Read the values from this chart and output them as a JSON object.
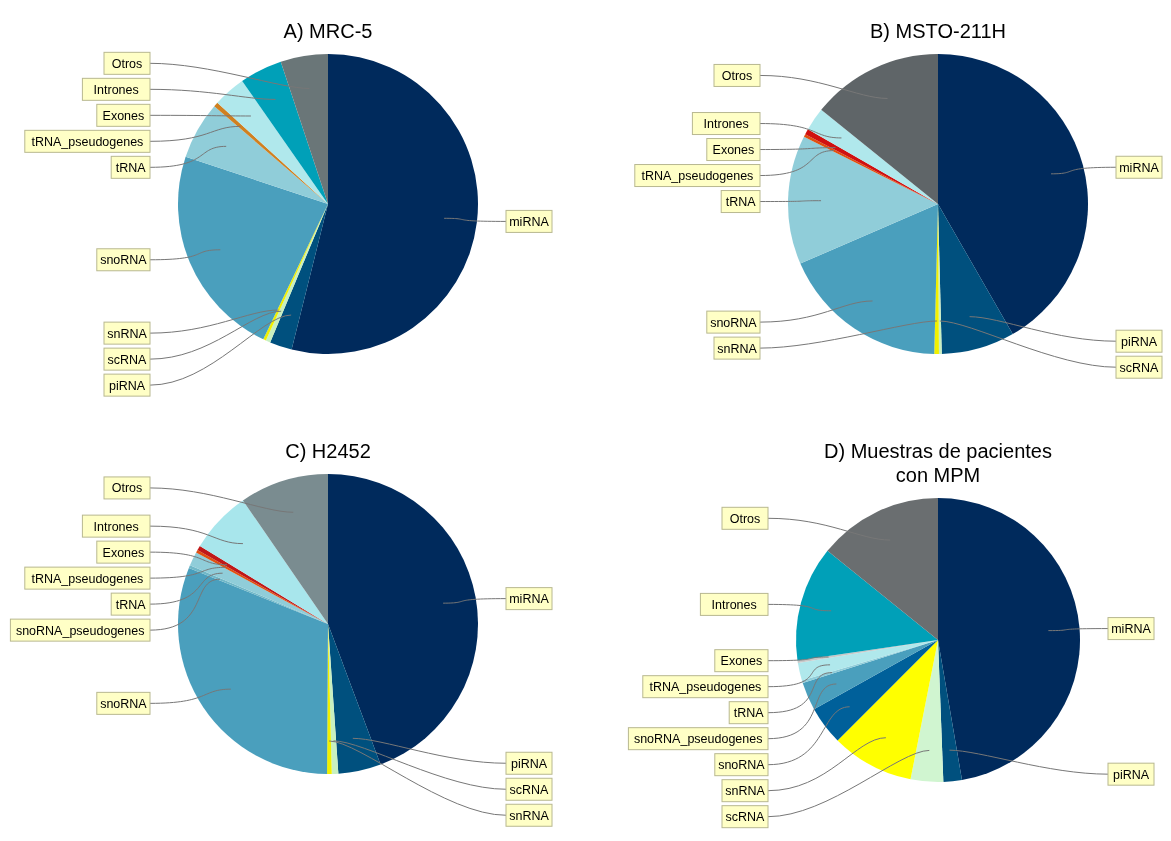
{
  "chart_data": [
    {
      "type": "pie",
      "title": "A) MRC-5",
      "categories": [
        "miRNA",
        "piRNA",
        "scRNA",
        "snRNA",
        "snoRNA",
        "tRNA",
        "tRNA_pseudogenes",
        "Exones",
        "Intrones",
        "Otros"
      ],
      "values": [
        53.9,
        2.4,
        0.5,
        0.3,
        23,
        6.2,
        0.5,
        3.5,
        4.6,
        5.1
      ],
      "colors": [
        "#002a5c",
        "#00507e",
        "#c8f0c0",
        "#f0f000",
        "#4a9fbd",
        "#90cdd9",
        "#d08020",
        "#b0e8ec",
        "#00a0b8",
        "#6a7678"
      ],
      "legend": false
    },
    {
      "type": "pie",
      "title": "B) MSTO-211H",
      "categories": [
        "miRNA",
        "piRNA",
        "scRNA",
        "snRNA",
        "snoRNA",
        "tRNA",
        "tRNA_pseudogenes",
        "Exones",
        "Intrones",
        "Otros"
      ],
      "values": [
        41.7,
        7.9,
        0.3,
        0.5,
        18.1,
        13.9,
        0.3,
        0.6,
        2.5,
        14.2
      ],
      "colors": [
        "#002a5c",
        "#00507e",
        "#c8f0c0",
        "#f0f000",
        "#4a9fbd",
        "#90cdd9",
        "#e05010",
        "#d01010",
        "#b0e8ec",
        "#5f6568"
      ],
      "legend": false
    },
    {
      "type": "pie",
      "title": "C) H2452",
      "categories": [
        "miRNA",
        "piRNA",
        "scRNA",
        "snRNA",
        "snoRNA",
        "snoRNA_pseudogenes",
        "tRNA",
        "tRNA_pseudogenes",
        "Exones",
        "Intrones",
        "Otros"
      ],
      "values": [
        44.3,
        4.6,
        0.7,
        0.5,
        31,
        0.3,
        1.5,
        0.3,
        0.5,
        6.7,
        9.6
      ],
      "colors": [
        "#002a5c",
        "#00507e",
        "#c8f0c0",
        "#f0f000",
        "#4a9fbd",
        "#70b8c8",
        "#90cdd9",
        "#e05010",
        "#c01818",
        "#a8e6ec",
        "#7a8c90"
      ],
      "legend": false
    },
    {
      "type": "pie",
      "title": "D) Muestras de pacientes con MPM",
      "categories": [
        "miRNA",
        "piRNA",
        "scRNA",
        "snRNA",
        "snoRNA",
        "snoRNA_pseudogenes",
        "tRNA",
        "tRNA_pseudogenes",
        "Exones",
        "Intrones",
        "Otros"
      ],
      "values": [
        47.3,
        2.1,
        3.7,
        9.4,
        4.4,
        3.2,
        0.3,
        2.0,
        0.3,
        13.1,
        14.2
      ],
      "colors": [
        "#002a5c",
        "#00507e",
        "#d0f5d0",
        "#ffff00",
        "#00609a",
        "#4a9fbd",
        "#90cdd9",
        "#b0e8ec",
        "#c8c8c8",
        "#00a0b8",
        "#6a6e70"
      ],
      "legend": false
    }
  ]
}
